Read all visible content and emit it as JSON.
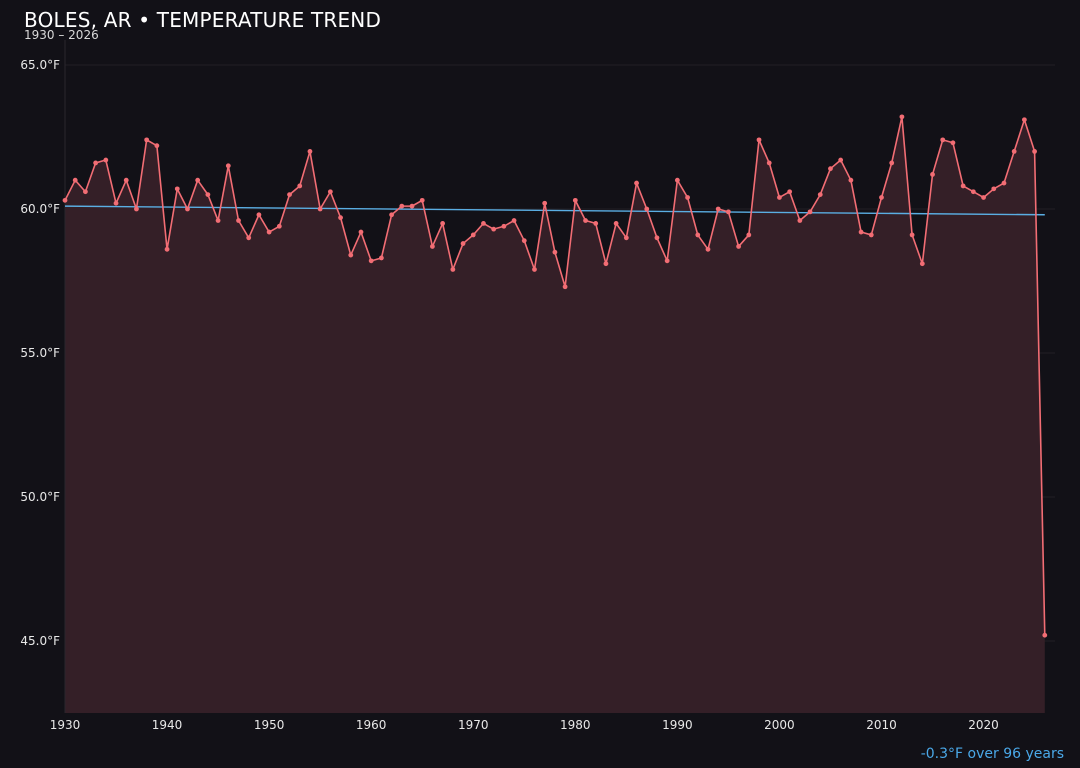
{
  "chart_data": {
    "type": "line",
    "title": "BOLES, AR • TEMPERATURE TREND",
    "subtitle": "1930 – 2026",
    "annotation": "-0.3°F over 96 years",
    "xlabel": "",
    "ylabel": "",
    "xlim": [
      1930,
      2027
    ],
    "ylim": [
      42.5,
      65.0
    ],
    "x_ticks": [
      1930,
      1940,
      1950,
      1960,
      1970,
      1980,
      1990,
      2000,
      2010,
      2020
    ],
    "y_ticks": [
      45.0,
      50.0,
      55.0,
      60.0,
      65.0
    ],
    "y_tick_labels": [
      "45.0°F",
      "50.0°F",
      "55.0°F",
      "60.0°F",
      "65.0°F"
    ],
    "grid": true,
    "legend": "none",
    "colors": {
      "series": "#f26d74",
      "fill": "#341f27",
      "trend": "#5aaee3",
      "background": "#121117",
      "grid": "#231f25"
    },
    "series": [
      {
        "x": [
          1930,
          1931,
          1932,
          1933,
          1934,
          1935,
          1936,
          1937,
          1938,
          1939,
          1940,
          1941,
          1942,
          1943,
          1944,
          1945,
          1946,
          1947,
          1948,
          1949,
          1950,
          1951,
          1952,
          1953,
          1954,
          1955,
          1956,
          1957,
          1958,
          1959,
          1960,
          1961,
          1962,
          1963,
          1964,
          1965,
          1966,
          1967,
          1968,
          1969,
          1970,
          1971,
          1972,
          1973,
          1974,
          1975,
          1976,
          1977,
          1978,
          1979,
          1980,
          1981,
          1982,
          1983,
          1984,
          1985,
          1986,
          1987,
          1988,
          1989,
          1990,
          1991,
          1992,
          1993,
          1994,
          1995,
          1996,
          1997,
          1998,
          1999,
          2000,
          2001,
          2002,
          2003,
          2004,
          2005,
          2006,
          2007,
          2008,
          2009,
          2010,
          2011,
          2012,
          2013,
          2014,
          2015,
          2016,
          2017,
          2018,
          2019,
          2020,
          2021,
          2022,
          2023,
          2024,
          2025,
          2026
        ],
        "values": [
          60.3,
          61.0,
          60.6,
          61.6,
          61.7,
          60.2,
          61.0,
          60.0,
          62.4,
          62.2,
          58.6,
          60.7,
          60.0,
          61.0,
          60.5,
          59.6,
          61.5,
          59.6,
          59.0,
          59.8,
          59.2,
          59.4,
          60.5,
          60.8,
          62.0,
          60.0,
          60.6,
          59.7,
          58.4,
          59.2,
          58.2,
          58.3,
          59.8,
          60.1,
          60.1,
          60.3,
          58.7,
          59.5,
          57.9,
          58.8,
          59.1,
          59.5,
          59.3,
          59.4,
          59.6,
          58.9,
          57.9,
          60.2,
          58.5,
          57.3,
          60.3,
          59.6,
          59.5,
          58.1,
          59.5,
          59.0,
          60.9,
          60.0,
          59.0,
          58.2,
          61.0,
          60.4,
          59.1,
          58.6,
          60.0,
          59.9,
          58.7,
          59.1,
          62.4,
          61.6,
          60.4,
          60.6,
          59.6,
          59.9,
          60.5,
          61.4,
          61.7,
          61.0,
          59.2,
          59.1,
          60.4,
          61.6,
          63.2,
          59.1,
          58.1,
          61.2,
          62.4,
          62.3,
          60.8,
          60.6,
          60.4,
          60.7,
          60.9,
          62.0,
          63.1,
          62.0,
          45.2
        ]
      }
    ],
    "trend_line": {
      "x": [
        1930,
        2026
      ],
      "values": [
        60.1,
        59.8
      ]
    }
  }
}
